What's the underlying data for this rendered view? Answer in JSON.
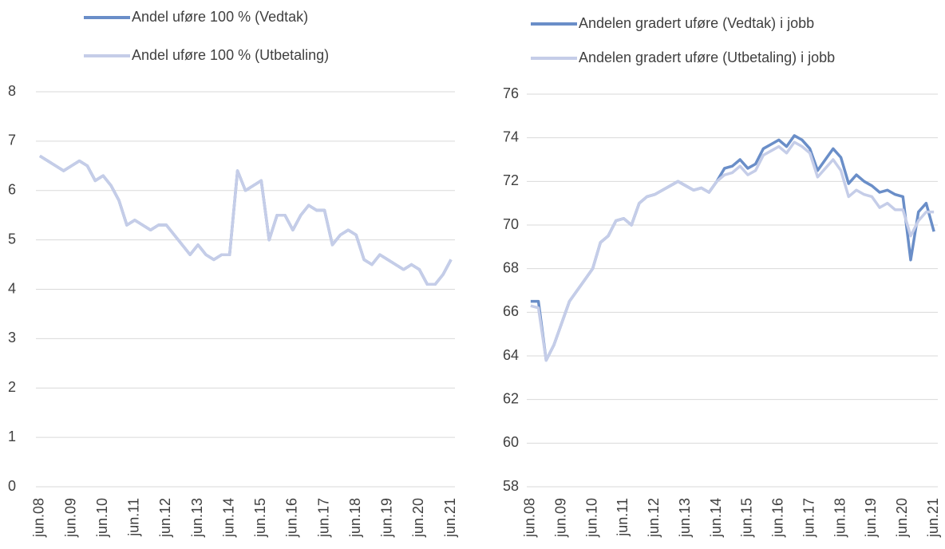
{
  "chart_data": [
    {
      "type": "line",
      "categories": [
        "jun.08",
        null,
        null,
        null,
        "jun.09",
        null,
        null,
        null,
        "jun.10",
        null,
        null,
        null,
        "jun.11",
        null,
        null,
        null,
        "jun.12",
        null,
        null,
        null,
        "jun.13",
        null,
        null,
        null,
        "jun.14",
        null,
        null,
        null,
        "jun.15",
        null,
        null,
        null,
        "jun.16",
        null,
        null,
        null,
        "jun.17",
        null,
        null,
        null,
        "jun.18",
        null,
        null,
        null,
        "jun.19",
        null,
        null,
        null,
        "jun.20",
        null,
        null,
        null,
        "jun.21"
      ],
      "series": [
        {
          "name": "Andel uføre 100 % (Vedtak)",
          "color": "#6a8ec8",
          "values": [
            6.7,
            6.6,
            6.5,
            6.4,
            6.5,
            6.6,
            6.5,
            6.2,
            6.3,
            6.1,
            5.8,
            5.3,
            5.4,
            5.3,
            5.2,
            5.3,
            5.3,
            5.1,
            4.9,
            4.7,
            4.9,
            4.7,
            4.6,
            4.7,
            4.7,
            6.4,
            6.0,
            6.1,
            6.2,
            5.0,
            5.5,
            5.5,
            5.2,
            5.5,
            5.7,
            5.6,
            5.6,
            4.9,
            5.1,
            5.2,
            5.1,
            4.6,
            4.5,
            4.7,
            4.6,
            4.5,
            4.4,
            4.5,
            4.4,
            4.1,
            4.1,
            4.3,
            4.6
          ]
        },
        {
          "name": "Andel uføre 100 % (Utbetaling)",
          "color": "#c5cde8",
          "values": [
            6.7,
            6.6,
            6.5,
            6.4,
            6.5,
            6.6,
            6.5,
            6.2,
            6.3,
            6.1,
            5.8,
            5.3,
            5.4,
            5.3,
            5.2,
            5.3,
            5.3,
            5.1,
            4.9,
            4.7,
            4.9,
            4.7,
            4.6,
            4.7,
            4.7,
            6.4,
            6.0,
            6.1,
            6.2,
            5.0,
            5.5,
            5.5,
            5.2,
            5.5,
            5.7,
            5.6,
            5.6,
            4.9,
            5.1,
            5.2,
            5.1,
            4.6,
            4.5,
            4.7,
            4.6,
            4.5,
            4.4,
            4.5,
            4.4,
            4.1,
            4.1,
            4.3,
            4.6
          ]
        }
      ],
      "ylim": [
        0,
        8
      ],
      "yticks": [
        0,
        1,
        2,
        3,
        4,
        5,
        6,
        7,
        8
      ],
      "grid": true
    },
    {
      "type": "line",
      "categories": [
        "jun.08",
        null,
        null,
        null,
        "jun.09",
        null,
        null,
        null,
        "jun.10",
        null,
        null,
        null,
        "jun.11",
        null,
        null,
        null,
        "jun.12",
        null,
        null,
        null,
        "jun.13",
        null,
        null,
        null,
        "jun.14",
        null,
        null,
        null,
        "jun.15",
        null,
        null,
        null,
        "jun.16",
        null,
        null,
        null,
        "jun.17",
        null,
        null,
        null,
        "jun.18",
        null,
        null,
        null,
        "jun.19",
        null,
        null,
        null,
        "jun.20",
        null,
        null,
        null,
        "jun.21"
      ],
      "series": [
        {
          "name": "Andelen gradert uføre (Vedtak) i jobb",
          "color": "#6a8ec8",
          "values": [
            66.5,
            66.5,
            63.8,
            64.5,
            65.5,
            66.5,
            67.0,
            67.5,
            68.0,
            69.2,
            69.5,
            70.2,
            70.3,
            70.0,
            71.0,
            71.3,
            71.4,
            71.6,
            71.8,
            72.0,
            71.8,
            71.6,
            71.7,
            71.5,
            72.0,
            72.6,
            72.7,
            73.0,
            72.6,
            72.8,
            73.5,
            73.7,
            73.9,
            73.6,
            74.1,
            73.9,
            73.5,
            72.5,
            73.0,
            73.5,
            73.1,
            71.9,
            72.3,
            72.0,
            71.8,
            71.5,
            71.6,
            71.4,
            71.3,
            68.4,
            70.6,
            71.0,
            69.7
          ]
        },
        {
          "name": "Andelen gradert uføre (Utbetaling) i jobb",
          "color": "#c5cde8",
          "values": [
            66.3,
            66.2,
            63.8,
            64.5,
            65.5,
            66.5,
            67.0,
            67.5,
            68.0,
            69.2,
            69.5,
            70.2,
            70.3,
            70.0,
            71.0,
            71.3,
            71.4,
            71.6,
            71.8,
            72.0,
            71.8,
            71.6,
            71.7,
            71.5,
            72.0,
            72.3,
            72.4,
            72.7,
            72.3,
            72.5,
            73.2,
            73.4,
            73.6,
            73.3,
            73.8,
            73.6,
            73.3,
            72.2,
            72.6,
            73.0,
            72.5,
            71.3,
            71.6,
            71.4,
            71.3,
            70.8,
            71.0,
            70.7,
            70.7,
            69.5,
            70.2,
            70.6,
            70.6
          ]
        }
      ],
      "ylim": [
        58,
        76
      ],
      "yticks": [
        58,
        60,
        62,
        64,
        66,
        68,
        70,
        72,
        74,
        76
      ],
      "grid": true
    }
  ]
}
